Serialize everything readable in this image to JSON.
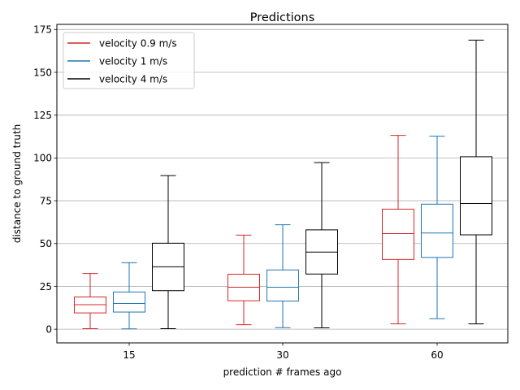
{
  "chart_data": {
    "type": "box",
    "title": "Predictions",
    "xlabel": "prediction # frames ago",
    "ylabel": "distance to ground truth",
    "ylim": [
      -8,
      178
    ],
    "yticks": [
      0,
      25,
      50,
      75,
      100,
      125,
      150,
      175
    ],
    "grid": "horizontal",
    "legend_position": "upper-left",
    "categories": [
      "15",
      "30",
      "60"
    ],
    "series": [
      {
        "name": "velocity 0.9 m/s",
        "color": "#d62728",
        "boxes": [
          {
            "whisker_low": 0.3,
            "q1": 9.5,
            "median": 14.3,
            "q3": 18.8,
            "whisker_high": 32.5
          },
          {
            "whisker_low": 2.6,
            "q1": 16.6,
            "median": 24.5,
            "q3": 32.1,
            "whisker_high": 54.9
          },
          {
            "whisker_low": 3.1,
            "q1": 40.7,
            "median": 55.8,
            "q3": 70.1,
            "whisker_high": 113.2
          }
        ]
      },
      {
        "name": "velocity 1 m/s",
        "color": "#1f77b4",
        "boxes": [
          {
            "whisker_low": 0.2,
            "q1": 10.0,
            "median": 15.0,
            "q3": 21.7,
            "whisker_high": 38.8
          },
          {
            "whisker_low": 0.9,
            "q1": 16.4,
            "median": 24.5,
            "q3": 34.6,
            "whisker_high": 61.0
          },
          {
            "whisker_low": 6.1,
            "q1": 41.9,
            "median": 56.2,
            "q3": 73.0,
            "whisker_high": 112.7
          }
        ]
      },
      {
        "name": "velocity 4 m/s",
        "color": "#000000",
        "boxes": [
          {
            "whisker_low": 0.3,
            "q1": 22.5,
            "median": 36.4,
            "q3": 50.2,
            "whisker_high": 89.7
          },
          {
            "whisker_low": 0.8,
            "q1": 32.2,
            "median": 45.0,
            "q3": 58.0,
            "whisker_high": 97.3
          },
          {
            "whisker_low": 3.1,
            "q1": 55.1,
            "median": 73.4,
            "q3": 100.7,
            "whisker_high": 168.8
          }
        ]
      }
    ]
  }
}
